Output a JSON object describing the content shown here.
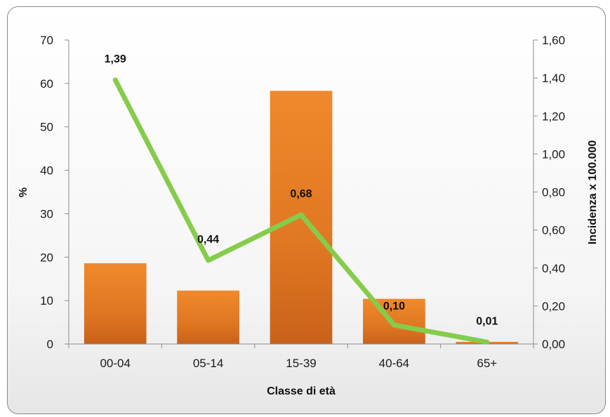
{
  "chart_data": {
    "type": "bar+line",
    "categories": [
      "00-04",
      "05-14",
      "15-39",
      "40-64",
      "65+"
    ],
    "bar_series": {
      "values": [
        18.6,
        12.3,
        58.3,
        10.4,
        0.5
      ],
      "axis": "left",
      "color": "#e67b24"
    },
    "line_series": {
      "values": [
        1.39,
        0.44,
        0.68,
        0.1,
        0.01
      ],
      "labels": [
        "1,39",
        "0,44",
        "0,68",
        "0,10",
        "0,01"
      ],
      "axis": "right",
      "color": "#86cc4b"
    },
    "xlabel": "Classe di età",
    "ylabel_left": "%",
    "ylabel_right": "Incidenza x 100.000",
    "ylim_left": [
      0,
      70
    ],
    "ylim_right": [
      0,
      1.6
    ],
    "yticks_left": [
      "0",
      "10",
      "20",
      "30",
      "40",
      "50",
      "60",
      "70"
    ],
    "yticks_right": [
      "0,00",
      "0,20",
      "0,40",
      "0,60",
      "0,80",
      "1,00",
      "1,20",
      "1,40",
      "1,60"
    ],
    "grid": false,
    "legend": "none"
  }
}
